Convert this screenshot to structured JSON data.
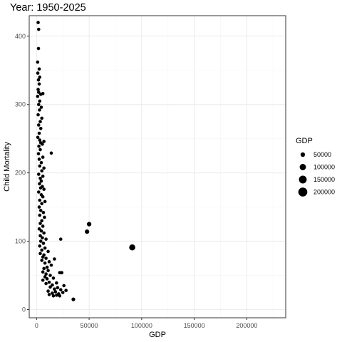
{
  "chart_data": {
    "type": "scatter",
    "title": "Year: 1950-2025",
    "xlabel": "GDP",
    "ylabel": "Child Mortality",
    "xlim": [
      -7000,
      237000
    ],
    "ylim": [
      -12,
      430
    ],
    "xticks": [
      0,
      50000,
      100000,
      150000,
      200000
    ],
    "xtick_labels": [
      "0",
      "50000",
      "100000",
      "150000",
      "200000"
    ],
    "yticks": [
      0,
      100,
      200,
      300,
      400
    ],
    "ytick_labels": [
      "0",
      "100",
      "200",
      "300",
      "400"
    ],
    "grid": true,
    "size_variable": "GDP",
    "legend": {
      "title": "GDP",
      "placement": "right",
      "entries": [
        {
          "label": "50000",
          "value": 50000
        },
        {
          "label": "100000",
          "value": 100000
        },
        {
          "label": "150000",
          "value": 150000
        },
        {
          "label": "200000",
          "value": 200000
        }
      ]
    },
    "colors": {
      "point": "#000000",
      "panel_border": "#333333",
      "grid_major": "#ebebeb",
      "grid_minor": "#f5f5f5"
    },
    "points": [
      {
        "x": 1500,
        "y": 420
      },
      {
        "x": 2000,
        "y": 410
      },
      {
        "x": 1800,
        "y": 382
      },
      {
        "x": 1000,
        "y": 362
      },
      {
        "x": 2500,
        "y": 352
      },
      {
        "x": 1200,
        "y": 346
      },
      {
        "x": 3000,
        "y": 340
      },
      {
        "x": 1800,
        "y": 336
      },
      {
        "x": 2500,
        "y": 330
      },
      {
        "x": 1500,
        "y": 322
      },
      {
        "x": 2000,
        "y": 318
      },
      {
        "x": 6000,
        "y": 316
      },
      {
        "x": 4000,
        "y": 315
      },
      {
        "x": 1000,
        "y": 312
      },
      {
        "x": 3000,
        "y": 305
      },
      {
        "x": 2000,
        "y": 300
      },
      {
        "x": 4500,
        "y": 296
      },
      {
        "x": 2800,
        "y": 292
      },
      {
        "x": 1500,
        "y": 285
      },
      {
        "x": 5000,
        "y": 280
      },
      {
        "x": 3500,
        "y": 275
      },
      {
        "x": 2000,
        "y": 270
      },
      {
        "x": 4000,
        "y": 265
      },
      {
        "x": 2500,
        "y": 258
      },
      {
        "x": 1200,
        "y": 252
      },
      {
        "x": 3000,
        "y": 248
      },
      {
        "x": 7000,
        "y": 246
      },
      {
        "x": 4000,
        "y": 244
      },
      {
        "x": 5500,
        "y": 242
      },
      {
        "x": 2200,
        "y": 239
      },
      {
        "x": 3500,
        "y": 234
      },
      {
        "x": 14000,
        "y": 229
      },
      {
        "x": 1800,
        "y": 228
      },
      {
        "x": 6000,
        "y": 223
      },
      {
        "x": 2500,
        "y": 220
      },
      {
        "x": 4500,
        "y": 215
      },
      {
        "x": 3000,
        "y": 210
      },
      {
        "x": 7000,
        "y": 207
      },
      {
        "x": 5000,
        "y": 203
      },
      {
        "x": 2000,
        "y": 198
      },
      {
        "x": 6000,
        "y": 195
      },
      {
        "x": 3500,
        "y": 192
      },
      {
        "x": 4500,
        "y": 188
      },
      {
        "x": 2800,
        "y": 184
      },
      {
        "x": 5500,
        "y": 180
      },
      {
        "x": 3800,
        "y": 178
      },
      {
        "x": 7000,
        "y": 176
      },
      {
        "x": 2000,
        "y": 172
      },
      {
        "x": 4500,
        "y": 168
      },
      {
        "x": 6000,
        "y": 165
      },
      {
        "x": 3000,
        "y": 160
      },
      {
        "x": 8000,
        "y": 158
      },
      {
        "x": 5000,
        "y": 155
      },
      {
        "x": 2500,
        "y": 150
      },
      {
        "x": 4000,
        "y": 145
      },
      {
        "x": 6500,
        "y": 142
      },
      {
        "x": 3000,
        "y": 138
      },
      {
        "x": 7500,
        "y": 135
      },
      {
        "x": 5000,
        "y": 130
      },
      {
        "x": 3500,
        "y": 126
      },
      {
        "x": 6000,
        "y": 122
      },
      {
        "x": 2500,
        "y": 118
      },
      {
        "x": 4500,
        "y": 115
      },
      {
        "x": 7000,
        "y": 112
      },
      {
        "x": 3500,
        "y": 108
      },
      {
        "x": 5500,
        "y": 105
      },
      {
        "x": 9000,
        "y": 103
      },
      {
        "x": 23000,
        "y": 103
      },
      {
        "x": 4000,
        "y": 100
      },
      {
        "x": 6500,
        "y": 97
      },
      {
        "x": 3000,
        "y": 93
      },
      {
        "x": 8000,
        "y": 90
      },
      {
        "x": 5000,
        "y": 87
      },
      {
        "x": 11000,
        "y": 85
      },
      {
        "x": 3500,
        "y": 82
      },
      {
        "x": 7000,
        "y": 80
      },
      {
        "x": 6000,
        "y": 77
      },
      {
        "x": 9000,
        "y": 75
      },
      {
        "x": 17000,
        "y": 74
      },
      {
        "x": 5000,
        "y": 72
      },
      {
        "x": 12000,
        "y": 70
      },
      {
        "x": 8000,
        "y": 68
      },
      {
        "x": 14000,
        "y": 65
      },
      {
        "x": 10000,
        "y": 62
      },
      {
        "x": 7000,
        "y": 60
      },
      {
        "x": 11000,
        "y": 57
      },
      {
        "x": 6000,
        "y": 55
      },
      {
        "x": 22000,
        "y": 54
      },
      {
        "x": 24000,
        "y": 54
      },
      {
        "x": 9000,
        "y": 52
      },
      {
        "x": 13000,
        "y": 50
      },
      {
        "x": 8000,
        "y": 48
      },
      {
        "x": 16000,
        "y": 46
      },
      {
        "x": 10000,
        "y": 45
      },
      {
        "x": 6000,
        "y": 43
      },
      {
        "x": 12000,
        "y": 40
      },
      {
        "x": 19000,
        "y": 39
      },
      {
        "x": 9000,
        "y": 38
      },
      {
        "x": 15000,
        "y": 36
      },
      {
        "x": 26000,
        "y": 35
      },
      {
        "x": 13000,
        "y": 33
      },
      {
        "x": 20000,
        "y": 32
      },
      {
        "x": 17000,
        "y": 30
      },
      {
        "x": 23000,
        "y": 29
      },
      {
        "x": 28000,
        "y": 28
      },
      {
        "x": 11000,
        "y": 27
      },
      {
        "x": 18000,
        "y": 26
      },
      {
        "x": 25000,
        "y": 25
      },
      {
        "x": 15000,
        "y": 24
      },
      {
        "x": 21000,
        "y": 23
      },
      {
        "x": 12000,
        "y": 22
      },
      {
        "x": 19000,
        "y": 21
      },
      {
        "x": 16000,
        "y": 20
      },
      {
        "x": 22000,
        "y": 20
      },
      {
        "x": 35000,
        "y": 15
      },
      {
        "x": 48000,
        "y": 114
      },
      {
        "x": 50000,
        "y": 125
      },
      {
        "x": 91000,
        "y": 91
      }
    ]
  }
}
